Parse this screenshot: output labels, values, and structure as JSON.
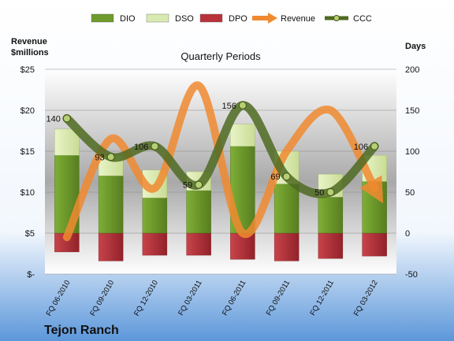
{
  "chart_data": {
    "type": "bar",
    "title": "Quarterly Periods",
    "company": "Tejon Ranch",
    "left_axis": {
      "label_line1": "Revenue",
      "label_line2": "$millions",
      "ylim": [
        0,
        25
      ],
      "ticks": [
        "$-",
        "$5",
        "$10",
        "$15",
        "$20",
        "$25"
      ]
    },
    "right_axis": {
      "label": "Days",
      "ylim": [
        -50,
        200
      ],
      "ticks": [
        "-50",
        "0",
        "50",
        "100",
        "150",
        "200"
      ]
    },
    "categories": [
      "FQ 06-2010",
      "FQ 09-2010",
      "FQ 12-2010",
      "FQ 03-2011",
      "FQ 06-2011",
      "FQ 09-2011",
      "FQ 12-2011",
      "FQ 03-2012"
    ],
    "series": [
      {
        "name": "DIO",
        "axis": "right",
        "values": [
          95,
          70,
          43,
          52,
          106,
          60,
          44,
          63
        ]
      },
      {
        "name": "DSO",
        "axis": "right",
        "values": [
          32,
          25,
          34,
          23,
          27,
          40,
          28,
          32
        ]
      },
      {
        "name": "DPO",
        "axis": "right",
        "values": [
          23,
          34,
          27,
          27,
          32,
          34,
          31,
          28
        ]
      },
      {
        "name": "Revenue",
        "axis": "left",
        "values": [
          4.5,
          16.5,
          10.5,
          23,
          5,
          15,
          20,
          10.5
        ]
      },
      {
        "name": "CCC",
        "axis": "right",
        "values": [
          140,
          93,
          106,
          59,
          156,
          69,
          50,
          106
        ],
        "labels": [
          "140",
          "93",
          "106",
          "59",
          "156",
          "69",
          "50",
          "106"
        ]
      }
    ],
    "colors": {
      "DIO": "#6e9b2c",
      "DSO": "#d9eab0",
      "DPO": "#b8323a",
      "Revenue": "#f08a30",
      "CCC": "#4f6a22"
    },
    "legend_position": "top",
    "grid": true
  }
}
